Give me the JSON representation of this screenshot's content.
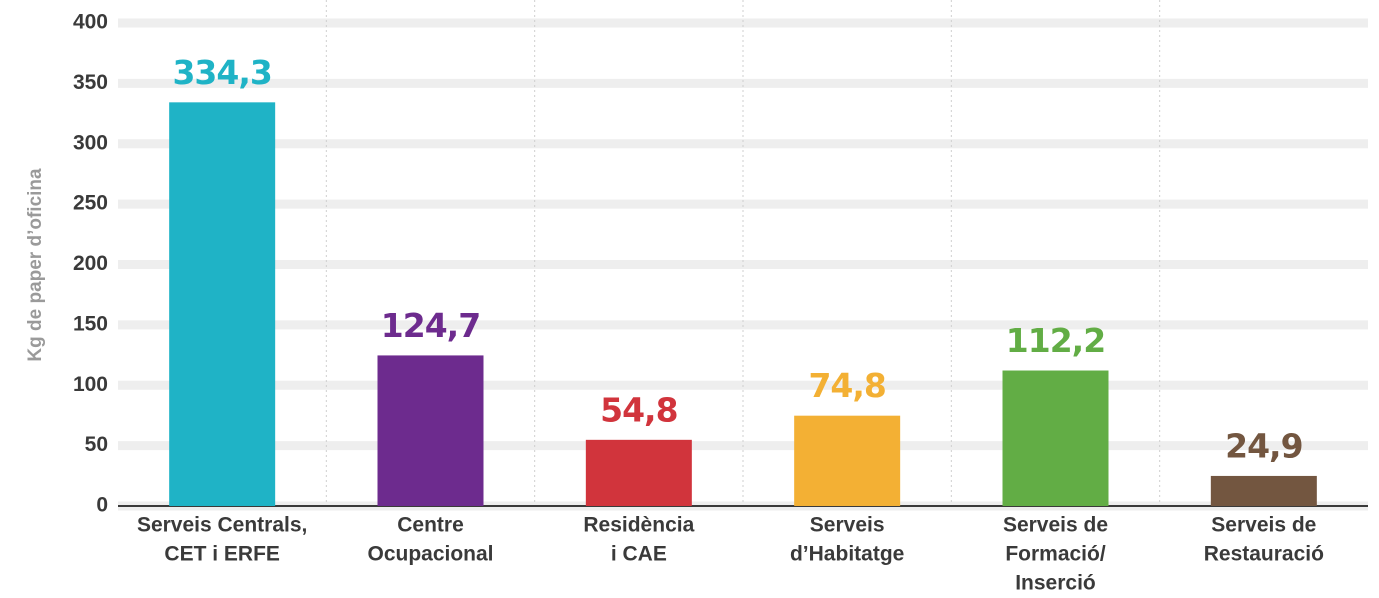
{
  "chart_data": {
    "type": "bar",
    "ylabel": "Kg de paper d’oficina",
    "categories": [
      [
        "Serveis Centrals,",
        "CET i ERFE"
      ],
      [
        "Centre",
        "Ocupacional"
      ],
      [
        "Residència",
        "i CAE"
      ],
      [
        "Serveis",
        "d’Habitatge"
      ],
      [
        "Serveis de",
        "Formació/",
        "Inserció"
      ],
      [
        "Serveis de",
        "Restauració"
      ]
    ],
    "values": [
      334.3,
      124.7,
      54.8,
      74.8,
      112.2,
      24.9
    ],
    "value_labels": [
      "334,3",
      "124,7",
      "54,8",
      "74,8",
      "112,2",
      "24,9"
    ],
    "colors": [
      "#1fb3c6",
      "#6d2b8e",
      "#d1343c",
      "#f3b034",
      "#62ad45",
      "#735640"
    ],
    "ylim": [
      0,
      400
    ],
    "yticks": [
      0,
      50,
      100,
      150,
      200,
      250,
      300,
      350,
      400
    ],
    "grid": true
  }
}
